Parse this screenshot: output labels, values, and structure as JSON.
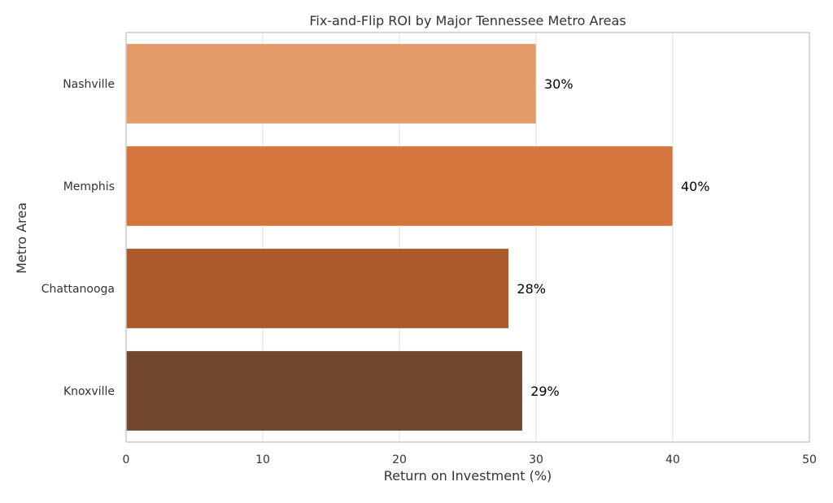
{
  "chart_data": {
    "type": "bar",
    "orientation": "horizontal",
    "title": "Fix-and-Flip ROI by Major Tennessee Metro Areas",
    "xlabel": "Return on Investment (%)",
    "ylabel": "Metro Area",
    "categories": [
      "Nashville",
      "Memphis",
      "Chattanooga",
      "Knoxville"
    ],
    "values": [
      30,
      40,
      28,
      29
    ],
    "data_labels": [
      "30%",
      "40%",
      "28%",
      "29%"
    ],
    "colors": [
      "#e19a68",
      "#d4753d",
      "#ac5a2c",
      "#70472e"
    ],
    "xlim": [
      0,
      50
    ],
    "xticks": [
      0,
      10,
      20,
      30,
      40,
      50
    ],
    "xtick_labels": [
      "0",
      "10",
      "20",
      "30",
      "40",
      "50"
    ],
    "grid": "vertical",
    "legend": "none"
  }
}
